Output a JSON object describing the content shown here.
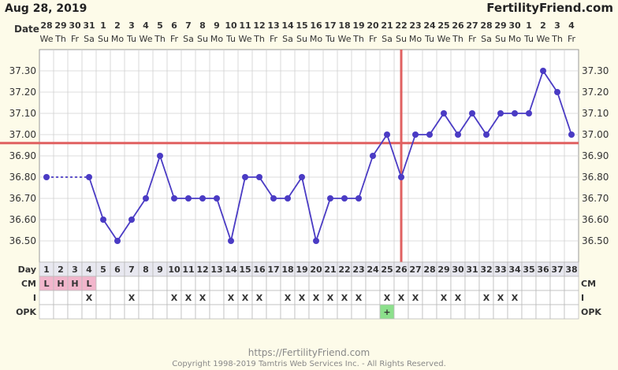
{
  "header": {
    "date": "Aug 28, 2019",
    "brand": "FertilityFriend.com",
    "date_row_label": "Date",
    "day_row_label": "Day",
    "cm_label": "CM",
    "i_label": "I",
    "opk_label": "OPK"
  },
  "footer": {
    "url": "https://FertilityFriend.com",
    "copyright": "Copyright 1998-2019 Tamtris Web Services Inc. - All Rights Reserved."
  },
  "colors": {
    "line": "#4a3bc4",
    "coverline": "#e06060",
    "ovulation": "#e06060",
    "cm_cell": "#f2b6cc",
    "opk_positive": "#8ce08c",
    "background": "#fdfbe9",
    "grid": "#d0d0d0"
  },
  "chart_data": {
    "type": "line",
    "dates": [
      "28",
      "29",
      "30",
      "31",
      "1",
      "2",
      "3",
      "4",
      "5",
      "6",
      "7",
      "8",
      "9",
      "10",
      "11",
      "12",
      "13",
      "14",
      "15",
      "16",
      "17",
      "18",
      "19",
      "20",
      "21",
      "22",
      "23",
      "24",
      "25",
      "26",
      "27",
      "28",
      "29",
      "30",
      "1",
      "2",
      "3",
      "4"
    ],
    "weekdays": [
      "We",
      "Th",
      "Fr",
      "Sa",
      "Su",
      "Mo",
      "Tu",
      "We",
      "Th",
      "Fr",
      "Sa",
      "Su",
      "Mo",
      "Tu",
      "We",
      "Th",
      "Fr",
      "Sa",
      "Su",
      "Mo",
      "Tu",
      "We",
      "Th",
      "Fr",
      "Sa",
      "Su",
      "Mo",
      "Tu",
      "We",
      "Th",
      "Fr",
      "Sa",
      "Su",
      "Mo",
      "Tu",
      "We",
      "Th",
      "Fr"
    ],
    "days": [
      1,
      2,
      3,
      4,
      5,
      6,
      7,
      8,
      9,
      10,
      11,
      12,
      13,
      14,
      15,
      16,
      17,
      18,
      19,
      20,
      21,
      22,
      23,
      24,
      25,
      26,
      27,
      28,
      29,
      30,
      31,
      32,
      33,
      34,
      35,
      36,
      37,
      38
    ],
    "temps": [
      36.8,
      null,
      null,
      36.8,
      36.6,
      36.5,
      36.6,
      36.7,
      36.9,
      36.7,
      36.7,
      36.7,
      36.7,
      36.5,
      36.8,
      36.8,
      36.7,
      36.7,
      36.8,
      36.5,
      36.7,
      36.7,
      36.7,
      36.9,
      37.0,
      36.8,
      37.0,
      37.0,
      37.1,
      37.0,
      37.1,
      37.0,
      37.1,
      37.1,
      37.1,
      37.3,
      37.2,
      37.0
    ],
    "ylim": [
      36.4,
      37.4
    ],
    "yticks": [
      "37.30",
      "37.20",
      "37.10",
      "37.00",
      "36.90",
      "36.80",
      "36.70",
      "36.60",
      "36.50"
    ],
    "coverline": 36.96,
    "ovulation_day": 26,
    "cm": [
      "L",
      "H",
      "H",
      "L",
      "",
      "",
      "",
      "",
      "",
      "",
      "",
      "",
      "",
      "",
      "",
      "",
      "",
      "",
      "",
      "",
      "",
      "",
      "",
      "",
      "",
      "",
      "",
      "",
      "",
      "",
      "",
      "",
      "",
      "",
      "",
      "",
      "",
      ""
    ],
    "intercourse": [
      "",
      "",
      "",
      "X",
      "",
      "",
      "X",
      "",
      "",
      "X",
      "X",
      "X",
      "",
      "X",
      "X",
      "X",
      "",
      "X",
      "X",
      "X",
      "X",
      "X",
      "X",
      "",
      "X",
      "X",
      "X",
      "",
      "X",
      "X",
      "",
      "X",
      "X",
      "X",
      "",
      "",
      "",
      ""
    ],
    "opk": [
      "",
      "",
      "",
      "",
      "",
      "",
      "",
      "",
      "",
      "",
      "",
      "",
      "",
      "",
      "",
      "",
      "",
      "",
      "",
      "",
      "",
      "",
      "",
      "",
      "+",
      "",
      "",
      "",
      "",
      "",
      "",
      "",
      "",
      "",
      "",
      "",
      "",
      ""
    ]
  }
}
